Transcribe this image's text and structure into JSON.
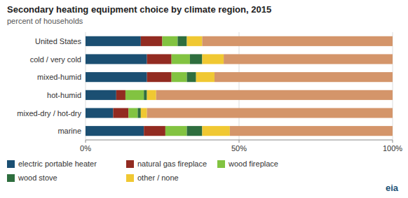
{
  "chart_data": {
    "type": "bar",
    "orientation": "horizontal",
    "stacked": true,
    "title": "Secondary heating equipment choice by climate region, 2015",
    "subtitle": "percent of households",
    "categories": [
      "United States",
      "cold / very cold",
      "mixed-humid",
      "hot-humid",
      "mixed-dry / hot-dry",
      "marine"
    ],
    "series": [
      {
        "name": "electric portable heater",
        "color": "#1b4f72",
        "values": [
          18,
          20,
          20,
          10,
          9,
          19
        ]
      },
      {
        "name": "natural gas fireplace",
        "color": "#922b21",
        "values": [
          7,
          8,
          8,
          3,
          5,
          7
        ]
      },
      {
        "name": "wood fireplace",
        "color": "#82c341",
        "values": [
          5,
          6,
          5,
          6,
          3,
          7
        ]
      },
      {
        "name": "wood stove",
        "color": "#2e6e3e",
        "values": [
          3,
          4,
          3,
          1,
          1,
          5
        ]
      },
      {
        "name": "other / none",
        "color": "#f0c832",
        "values": [
          5,
          7,
          6,
          3,
          2,
          9
        ]
      },
      {
        "color": "#d4956a",
        "values": [
          62,
          55,
          58,
          77,
          80,
          53
        ]
      }
    ],
    "xlim": [
      0,
      100
    ],
    "xticks": [
      {
        "value": 0,
        "label": "0%"
      },
      {
        "value": 50,
        "label": "50%"
      },
      {
        "value": 100,
        "label": "100%"
      }
    ],
    "grid": true,
    "annotations": [
      "eia"
    ]
  }
}
